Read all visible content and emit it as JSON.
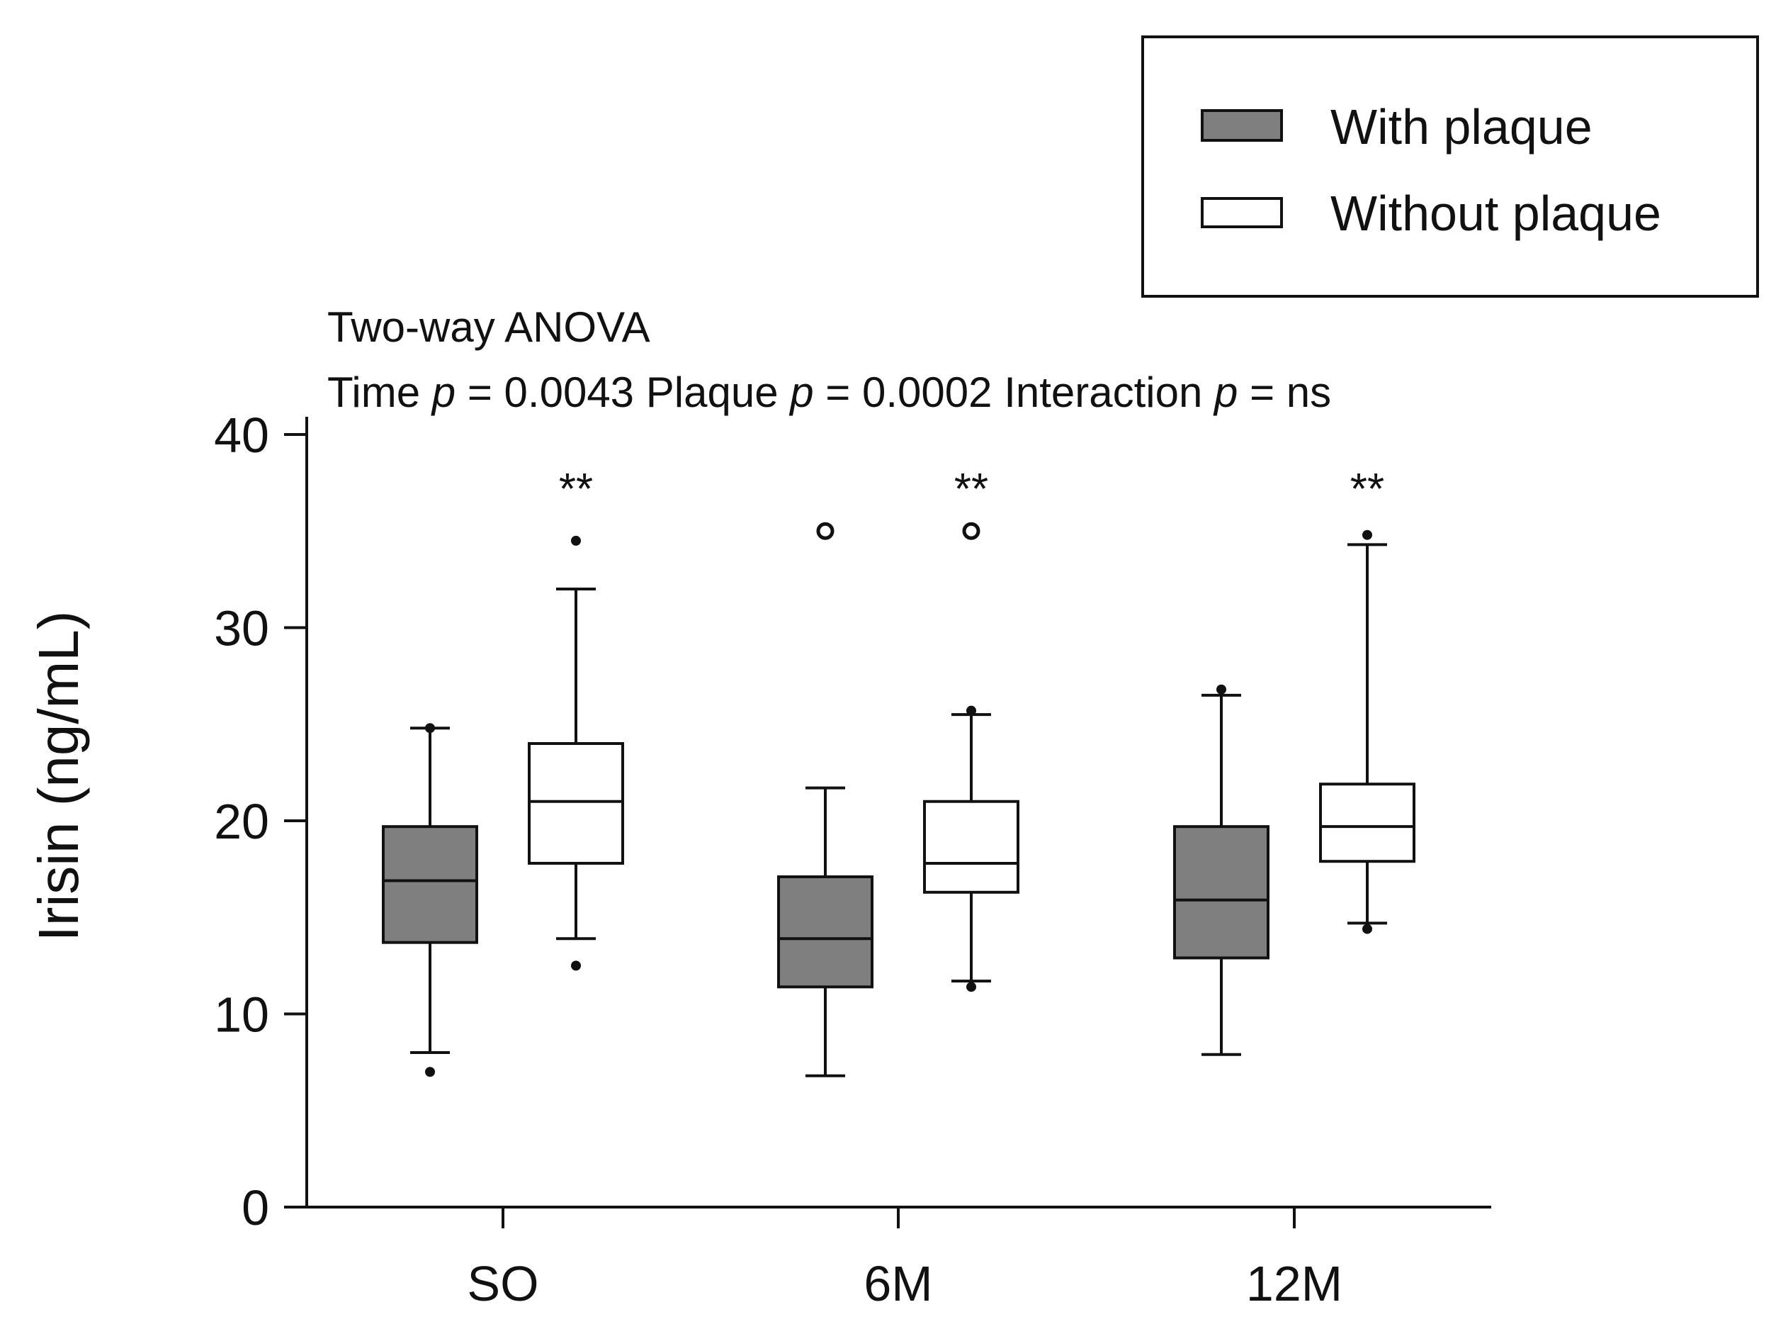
{
  "chart_data": {
    "type": "boxplot",
    "title": "Two-way ANOVA",
    "stats": {
      "time_label": "Time",
      "plaque_label": "Plaque",
      "interaction_label": "Interaction",
      "p_symbol": "p",
      "time_value": "= 0.0043",
      "plaque_value": "= 0.0002",
      "interaction_value": "= ns"
    },
    "ylabel": "Irisin (ng/mL)",
    "xlabel": "",
    "ylim": [
      0,
      40
    ],
    "yticks": [
      0,
      10,
      20,
      30,
      40
    ],
    "categories": [
      "SO",
      "6M",
      "12M"
    ],
    "colors": {
      "with_plaque_fill": "#7f7f7f",
      "without_plaque_fill": "#ffffff",
      "stroke": "#111111",
      "legend_border": "#111111"
    },
    "series": [
      {
        "name": "With plaque",
        "key": "with",
        "boxes": [
          {
            "category": "SO",
            "whisker_low": 8.0,
            "q1": 13.7,
            "median": 16.9,
            "q3": 19.7,
            "whisker_high": 24.8,
            "outliers_filled": [
              7.0,
              24.8
            ],
            "outliers_open": []
          },
          {
            "category": "6M",
            "whisker_low": 6.8,
            "q1": 11.4,
            "median": 13.9,
            "q3": 17.1,
            "whisker_high": 21.7,
            "outliers_filled": [],
            "outliers_open": [
              35.0
            ]
          },
          {
            "category": "12M",
            "whisker_low": 7.9,
            "q1": 12.9,
            "median": 15.9,
            "q3": 19.7,
            "whisker_high": 26.5,
            "outliers_filled": [
              26.8
            ],
            "outliers_open": []
          }
        ]
      },
      {
        "name": "Without plaque",
        "key": "without",
        "boxes": [
          {
            "category": "SO",
            "whisker_low": 13.9,
            "q1": 17.8,
            "median": 21.0,
            "q3": 24.0,
            "whisker_high": 32.0,
            "outliers_filled": [
              34.5,
              12.5
            ],
            "outliers_open": []
          },
          {
            "category": "6M",
            "whisker_low": 11.7,
            "q1": 16.3,
            "median": 17.8,
            "q3": 21.0,
            "whisker_high": 25.5,
            "outliers_filled": [
              25.7,
              11.4
            ],
            "outliers_open": [
              35.0
            ]
          },
          {
            "category": "12M",
            "whisker_low": 14.7,
            "q1": 17.9,
            "median": 19.7,
            "q3": 21.9,
            "whisker_high": 34.3,
            "outliers_filled": [
              34.8,
              14.4
            ],
            "outliers_open": []
          }
        ]
      }
    ],
    "significance": [
      {
        "category": "SO",
        "series": "without",
        "label": "**",
        "y": 37.5
      },
      {
        "category": "6M",
        "series": "without",
        "label": "**",
        "y": 37.5
      },
      {
        "category": "12M",
        "series": "without",
        "label": "**",
        "y": 37.5
      }
    ],
    "legend": {
      "position": "top-right",
      "entries": [
        "With plaque",
        "Without plaque"
      ]
    }
  }
}
